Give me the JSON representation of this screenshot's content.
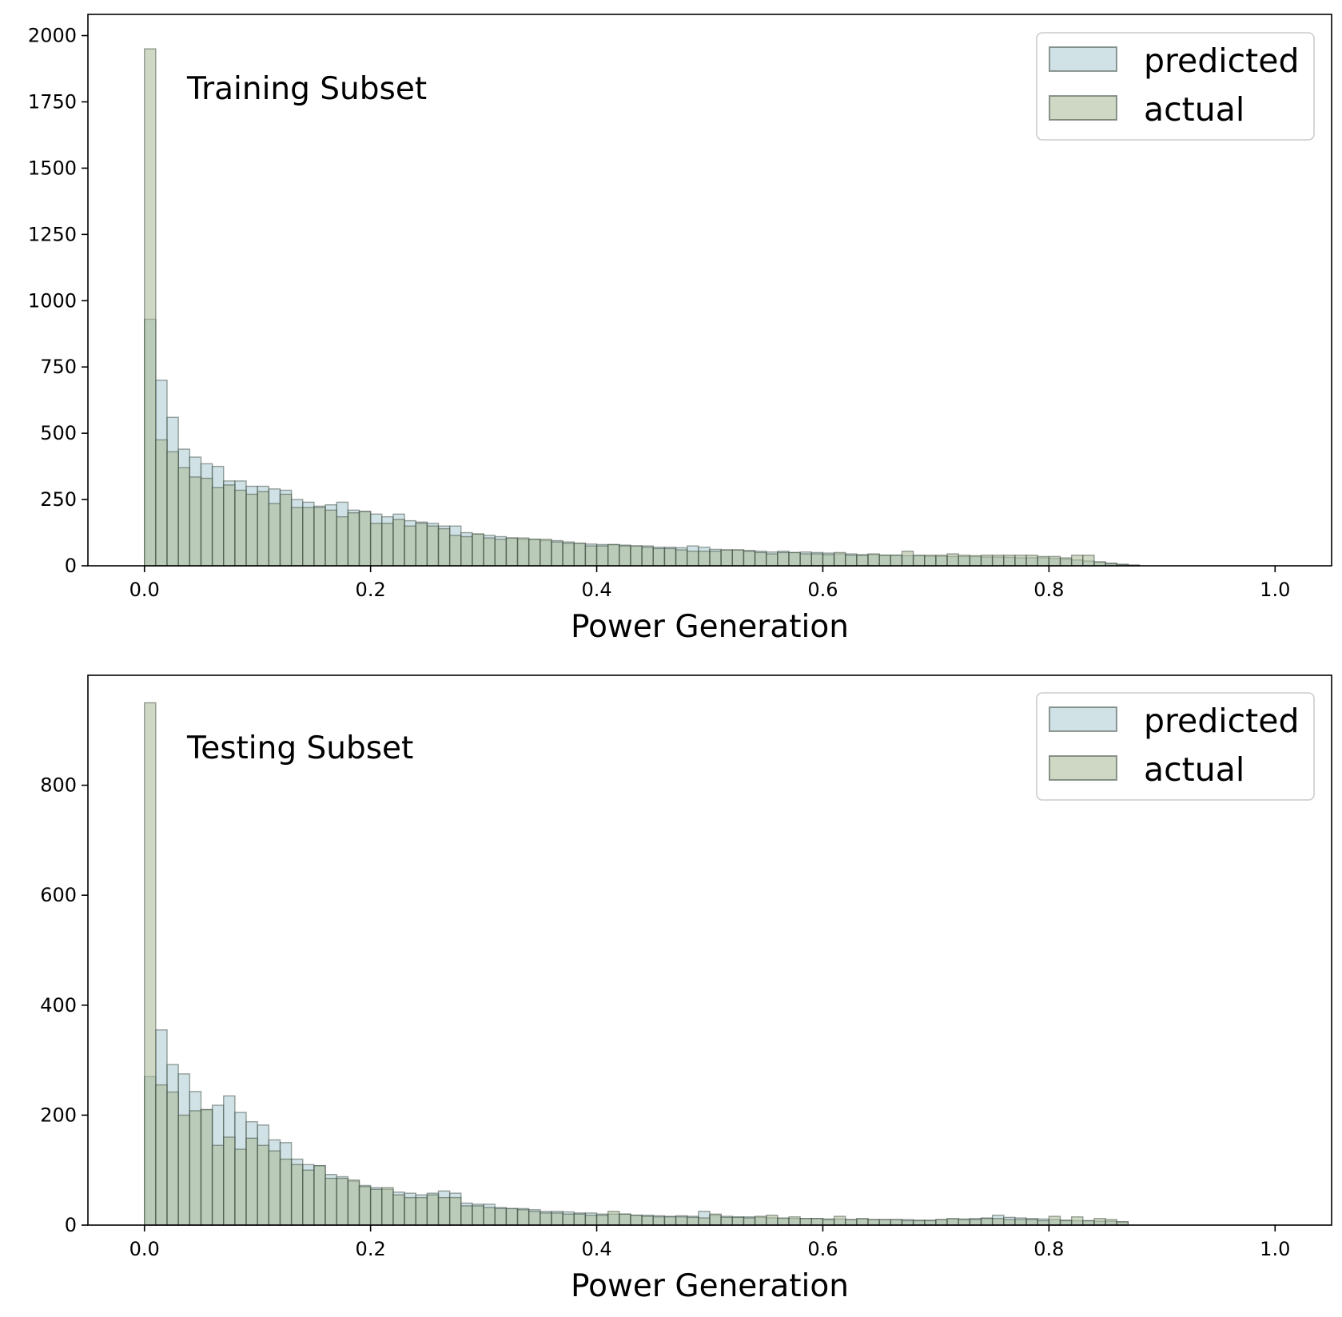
{
  "chart_data": [
    {
      "type": "bar",
      "annotation": "Training Subset",
      "xlabel": "Power Generation",
      "ylabel": "",
      "xlim": [
        -0.05,
        1.05
      ],
      "ylim": [
        0,
        2080
      ],
      "bin_width": 0.01,
      "x_ticks": [
        "0.0",
        "0.2",
        "0.4",
        "0.6",
        "0.8",
        "1.0"
      ],
      "x_tick_values": [
        0,
        0.2,
        0.4,
        0.6,
        0.8,
        1.0
      ],
      "y_ticks": [
        "0",
        "250",
        "500",
        "750",
        "1000",
        "1250",
        "1500",
        "1750",
        "2000"
      ],
      "y_tick_values": [
        0,
        250,
        500,
        750,
        1000,
        1250,
        1500,
        1750,
        2000
      ],
      "legend": {
        "placement": "top-right",
        "entries": [
          "predicted",
          "actual"
        ]
      },
      "colors": {
        "predicted": "#a9cbd1",
        "actual": "#a8b894",
        "edge": "#3c4a40"
      },
      "series": [
        {
          "name": "predicted",
          "values": [
            930,
            700,
            560,
            440,
            410,
            385,
            375,
            320,
            320,
            300,
            300,
            290,
            285,
            250,
            240,
            225,
            230,
            240,
            210,
            205,
            195,
            185,
            195,
            170,
            165,
            160,
            150,
            150,
            125,
            120,
            115,
            110,
            105,
            100,
            100,
            95,
            95,
            90,
            85,
            82,
            80,
            80,
            78,
            75,
            75,
            70,
            70,
            68,
            75,
            70,
            62,
            60,
            60,
            58,
            55,
            52,
            55,
            50,
            52,
            50,
            48,
            45,
            45,
            42,
            42,
            40,
            40,
            38,
            38,
            36,
            36,
            35,
            35,
            35,
            33,
            33,
            32,
            30,
            30,
            30,
            28,
            25,
            22,
            18,
            14,
            10,
            6,
            3
          ]
        },
        {
          "name": "actual",
          "values": [
            1950,
            475,
            430,
            370,
            335,
            330,
            295,
            305,
            285,
            270,
            280,
            235,
            270,
            220,
            220,
            220,
            210,
            185,
            200,
            205,
            160,
            160,
            175,
            150,
            160,
            150,
            140,
            115,
            110,
            120,
            105,
            100,
            105,
            105,
            100,
            100,
            90,
            85,
            85,
            75,
            75,
            80,
            75,
            75,
            70,
            65,
            65,
            60,
            55,
            55,
            55,
            60,
            60,
            55,
            50,
            45,
            50,
            50,
            45,
            45,
            42,
            50,
            40,
            40,
            45,
            40,
            40,
            55,
            40,
            40,
            40,
            45,
            40,
            38,
            40,
            40,
            40,
            40,
            40,
            35,
            35,
            30,
            40,
            40,
            15,
            8,
            4,
            2
          ]
        }
      ]
    },
    {
      "type": "bar",
      "annotation": "Testing Subset",
      "xlabel": "Power Generation",
      "ylabel": "",
      "xlim": [
        -0.05,
        1.05
      ],
      "ylim": [
        0,
        1000
      ],
      "bin_width": 0.01,
      "x_ticks": [
        "0.0",
        "0.2",
        "0.4",
        "0.6",
        "0.8",
        "1.0"
      ],
      "x_tick_values": [
        0,
        0.2,
        0.4,
        0.6,
        0.8,
        1.0
      ],
      "y_ticks": [
        "0",
        "200",
        "400",
        "600",
        "800"
      ],
      "y_tick_values": [
        0,
        200,
        400,
        600,
        800
      ],
      "legend": {
        "placement": "top-right",
        "entries": [
          "predicted",
          "actual"
        ]
      },
      "colors": {
        "predicted": "#a9cbd1",
        "actual": "#a8b894",
        "edge": "#3c4a40"
      },
      "series": [
        {
          "name": "predicted",
          "values": [
            270,
            355,
            292,
            275,
            243,
            210,
            218,
            235,
            205,
            188,
            182,
            155,
            150,
            120,
            110,
            108,
            92,
            88,
            80,
            72,
            68,
            65,
            60,
            58,
            55,
            58,
            62,
            58,
            40,
            38,
            38,
            32,
            30,
            30,
            28,
            25,
            25,
            24,
            22,
            22,
            20,
            20,
            20,
            18,
            18,
            17,
            16,
            17,
            16,
            25,
            18,
            16,
            15,
            15,
            14,
            13,
            12,
            12,
            12,
            12,
            11,
            11,
            10,
            11,
            10,
            10,
            10,
            10,
            9,
            9,
            10,
            11,
            11,
            12,
            13,
            18,
            14,
            13,
            12,
            11,
            10,
            9,
            8,
            8,
            7,
            7,
            6
          ]
        },
        {
          "name": "actual",
          "values": [
            950,
            255,
            242,
            200,
            208,
            210,
            145,
            160,
            138,
            158,
            145,
            135,
            120,
            110,
            100,
            108,
            85,
            85,
            82,
            70,
            65,
            68,
            55,
            50,
            50,
            55,
            50,
            50,
            35,
            35,
            32,
            30,
            30,
            28,
            25,
            22,
            22,
            20,
            20,
            18,
            18,
            25,
            20,
            18,
            16,
            15,
            15,
            15,
            14,
            13,
            20,
            14,
            14,
            13,
            16,
            18,
            13,
            15,
            12,
            12,
            10,
            16,
            10,
            12,
            10,
            10,
            10,
            8,
            8,
            8,
            10,
            12,
            10,
            10,
            12,
            12,
            10,
            10,
            10,
            8,
            16,
            8,
            15,
            8,
            12,
            10,
            6
          ]
        }
      ]
    }
  ]
}
